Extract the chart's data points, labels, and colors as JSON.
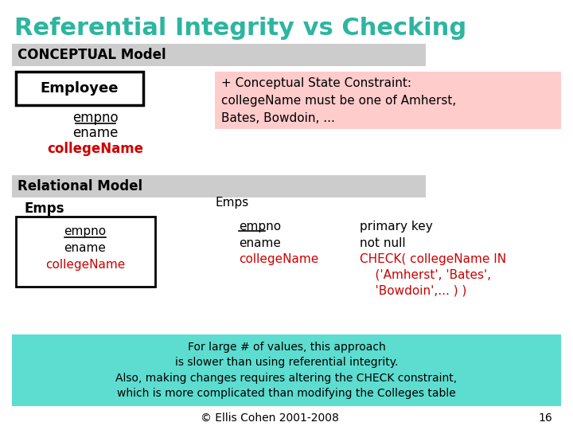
{
  "title": "Referential Integrity vs Checking",
  "title_color": "#2db5a0",
  "bg_color": "#ffffff",
  "conceptual_label": "CONCEPTUAL Model",
  "relational_label": "Relational Model",
  "section_bg": "#cccccc",
  "employee_box_label": "Employee",
  "employee_fields": [
    "empno",
    "ename",
    "collegeName"
  ],
  "employee_field_colors": [
    "#000000",
    "#000000",
    "#cc0000"
  ],
  "employee_underline": [
    true,
    false,
    false
  ],
  "constraint_box_color": "#ffcccc",
  "constraint_text": "+ Conceptual State Constraint:\ncollegeName must be one of Amherst,\nBates, Bowdoin, ...",
  "emps_label": "Emps",
  "emps_box_fields": [
    "empno",
    "ename",
    "collegeName"
  ],
  "emps_box_field_colors": [
    "#000000",
    "#000000",
    "#cc0000"
  ],
  "emps_box_underline": [
    true,
    false,
    false
  ],
  "rel_right_title": "Emps",
  "rel_right_fields": [
    "empno",
    "ename",
    "collegeName"
  ],
  "rel_right_field_colors": [
    "#000000",
    "#000000",
    "#cc0000"
  ],
  "rel_right_underline": [
    true,
    false,
    false
  ],
  "rel_right_values": [
    "primary key",
    "not null",
    "CHECK( collegeName IN\n    ('Amherst', 'Bates',\n    'Bowdoin',... ) )"
  ],
  "rel_right_value_colors": [
    "#000000",
    "#000000",
    "#cc0000"
  ],
  "bottom_box_color": "#5dddd0",
  "bottom_text": "For large # of values, this approach\nis slower than using referential integrity.\nAlso, making changes requires altering the CHECK constraint,\nwhich is more complicated than modifying the Colleges table",
  "footer_text": "© Ellis Cohen 2001-2008",
  "footer_page": "16"
}
